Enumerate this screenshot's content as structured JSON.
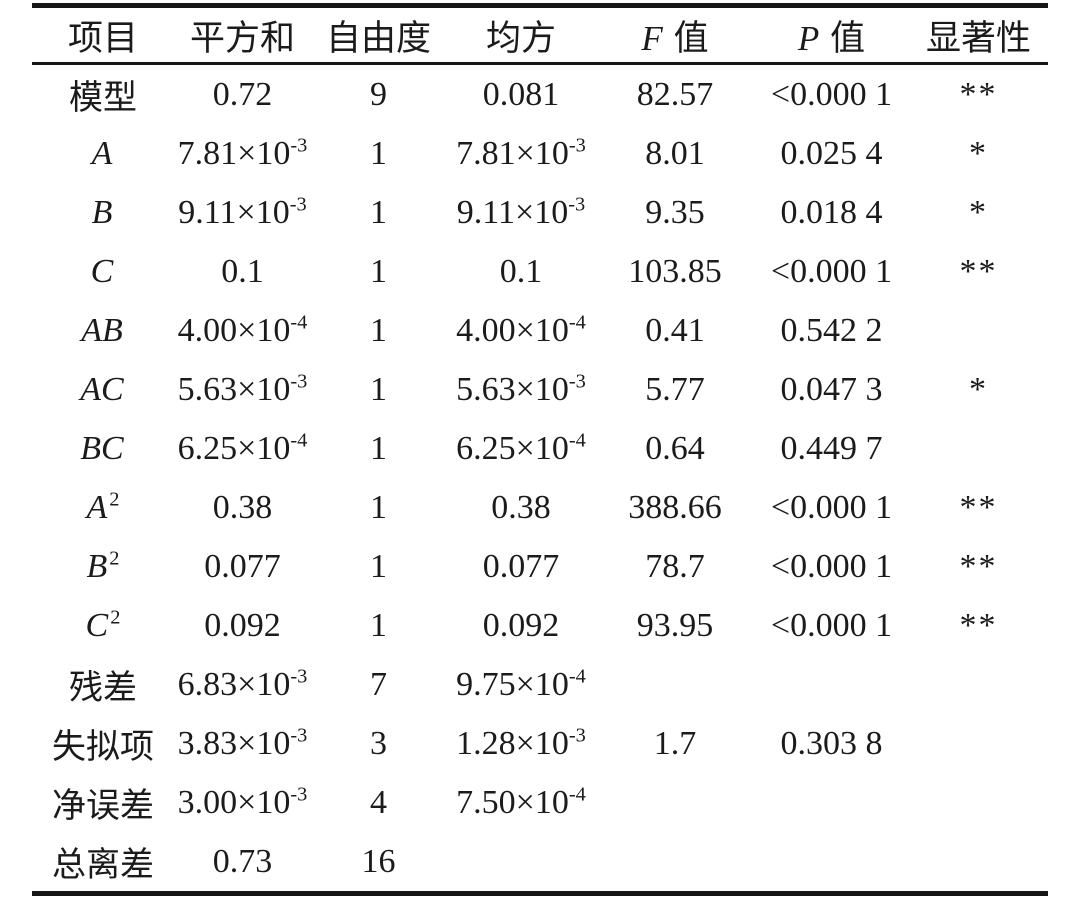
{
  "table": {
    "columns": [
      {
        "b": "项目"
      },
      {
        "b": "平方和"
      },
      {
        "b": "自由度"
      },
      {
        "b": "均方"
      },
      {
        "i": "F",
        "b": " 值"
      },
      {
        "i": "P",
        "b": " 值"
      },
      {
        "b": "显著性"
      }
    ],
    "rows": [
      {
        "cells": [
          {
            "b": "模型"
          },
          {
            "b": "0.72"
          },
          {
            "b": "9"
          },
          {
            "b": "0.081"
          },
          {
            "b": "82.57"
          },
          {
            "b": "<0.000 1"
          },
          {
            "b": "**"
          }
        ]
      },
      {
        "cells": [
          {
            "i": "A"
          },
          {
            "b": "7.81×10",
            "s": "-3"
          },
          {
            "b": "1"
          },
          {
            "b": "7.81×10",
            "s": "-3"
          },
          {
            "b": "8.01"
          },
          {
            "b": "0.025 4"
          },
          {
            "b": "*"
          }
        ]
      },
      {
        "cells": [
          {
            "i": "B"
          },
          {
            "b": "9.11×10",
            "s": "-3"
          },
          {
            "b": "1"
          },
          {
            "b": "9.11×10",
            "s": "-3"
          },
          {
            "b": "9.35"
          },
          {
            "b": "0.018 4"
          },
          {
            "b": "*"
          }
        ]
      },
      {
        "cells": [
          {
            "i": "C"
          },
          {
            "b": "0.1"
          },
          {
            "b": "1"
          },
          {
            "b": "0.1"
          },
          {
            "b": "103.85"
          },
          {
            "b": "<0.000 1"
          },
          {
            "b": "**"
          }
        ]
      },
      {
        "cells": [
          {
            "i": "AB"
          },
          {
            "b": "4.00×10",
            "s": "-4"
          },
          {
            "b": "1"
          },
          {
            "b": "4.00×10",
            "s": "-4"
          },
          {
            "b": "0.41"
          },
          {
            "b": "0.542 2"
          },
          {
            "b": ""
          }
        ]
      },
      {
        "cells": [
          {
            "i": "AC"
          },
          {
            "b": "5.63×10",
            "s": "-3"
          },
          {
            "b": "1"
          },
          {
            "b": "5.63×10",
            "s": "-3"
          },
          {
            "b": "5.77"
          },
          {
            "b": "0.047 3"
          },
          {
            "b": "*"
          }
        ]
      },
      {
        "cells": [
          {
            "i": "BC"
          },
          {
            "b": "6.25×10",
            "s": "-4"
          },
          {
            "b": "1"
          },
          {
            "b": "6.25×10",
            "s": "-4"
          },
          {
            "b": "0.64"
          },
          {
            "b": "0.449 7"
          },
          {
            "b": ""
          }
        ]
      },
      {
        "cells": [
          {
            "i": "A",
            "s": "2"
          },
          {
            "b": "0.38"
          },
          {
            "b": "1"
          },
          {
            "b": "0.38"
          },
          {
            "b": "388.66"
          },
          {
            "b": "<0.000 1"
          },
          {
            "b": "**"
          }
        ]
      },
      {
        "cells": [
          {
            "i": "B",
            "s": "2"
          },
          {
            "b": "0.077"
          },
          {
            "b": "1"
          },
          {
            "b": "0.077"
          },
          {
            "b": "78.7"
          },
          {
            "b": "<0.000 1"
          },
          {
            "b": "**"
          }
        ]
      },
      {
        "cells": [
          {
            "i": "C",
            "s": "2"
          },
          {
            "b": "0.092"
          },
          {
            "b": "1"
          },
          {
            "b": "0.092"
          },
          {
            "b": "93.95"
          },
          {
            "b": "<0.000 1"
          },
          {
            "b": "**"
          }
        ]
      },
      {
        "cells": [
          {
            "b": "残差"
          },
          {
            "b": "6.83×10",
            "s": "-3"
          },
          {
            "b": "7"
          },
          {
            "b": "9.75×10",
            "s": "-4"
          },
          {
            "b": ""
          },
          {
            "b": ""
          },
          {
            "b": ""
          }
        ]
      },
      {
        "cells": [
          {
            "b": "失拟项"
          },
          {
            "b": "3.83×10",
            "s": "-3"
          },
          {
            "b": "3"
          },
          {
            "b": "1.28×10",
            "s": "-3"
          },
          {
            "b": "1.7"
          },
          {
            "b": "0.303 8"
          },
          {
            "b": ""
          }
        ]
      },
      {
        "cells": [
          {
            "b": "净误差"
          },
          {
            "b": "3.00×10",
            "s": "-3"
          },
          {
            "b": "4"
          },
          {
            "b": "7.50×10",
            "s": "-4"
          },
          {
            "b": ""
          },
          {
            "b": ""
          },
          {
            "b": ""
          }
        ]
      },
      {
        "cells": [
          {
            "b": "总离差"
          },
          {
            "b": "0.73"
          },
          {
            "b": "16"
          },
          {
            "b": ""
          },
          {
            "b": ""
          },
          {
            "b": ""
          },
          {
            "b": ""
          }
        ]
      }
    ]
  }
}
